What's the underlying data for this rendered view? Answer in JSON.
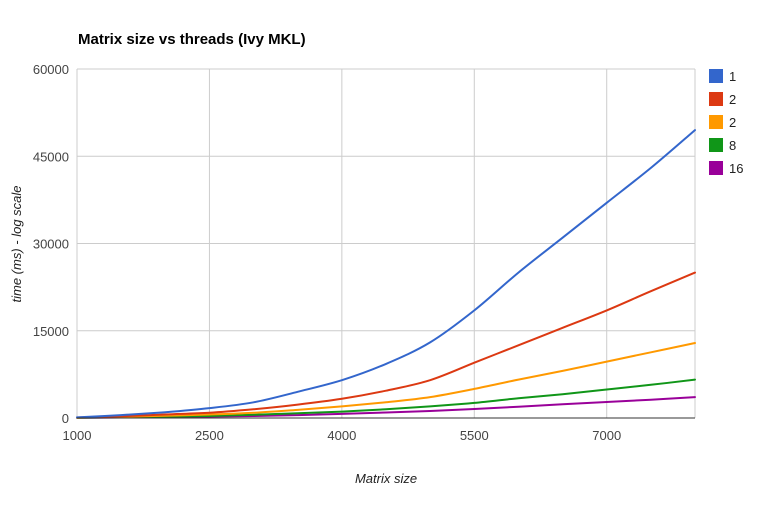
{
  "chart_data": {
    "type": "line",
    "title": "Matrix size vs threads (Ivy MKL)",
    "xlabel": "Matrix size",
    "ylabel": "time (ms) - log scale",
    "xlim": [
      1000,
      8000
    ],
    "ylim": [
      0,
      60000
    ],
    "x_ticks": [
      "1000",
      "2500",
      "4000",
      "5500",
      "7000"
    ],
    "y_ticks": [
      "0",
      "15000",
      "30000",
      "45000",
      "60000"
    ],
    "x_tick_values": [
      1000,
      2500,
      4000,
      5500,
      7000
    ],
    "y_tick_values": [
      0,
      15000,
      30000,
      45000,
      60000
    ],
    "grid": true,
    "legend_position": "right",
    "x": [
      1000,
      1500,
      2000,
      2500,
      3000,
      3500,
      4000,
      4500,
      5000,
      5500,
      6000,
      6500,
      7000,
      7500,
      8000
    ],
    "series": [
      {
        "name": "1",
        "color": "#3366cc",
        "values": [
          100,
          500,
          1000,
          1700,
          2700,
          4500,
          6500,
          9300,
          13000,
          18500,
          25000,
          31000,
          37000,
          43000,
          49500
        ]
      },
      {
        "name": "2",
        "color": "#dc3912",
        "values": [
          80,
          300,
          600,
          900,
          1500,
          2300,
          3300,
          4700,
          6500,
          9500,
          12500,
          15500,
          18500,
          21800,
          25000
        ]
      },
      {
        "name": "2",
        "color": "#ff9900",
        "values": [
          60,
          200,
          400,
          600,
          900,
          1400,
          2000,
          2700,
          3600,
          5000,
          6600,
          8100,
          9700,
          11300,
          12900
        ]
      },
      {
        "name": "8",
        "color": "#109618",
        "values": [
          40,
          120,
          250,
          350,
          550,
          800,
          1100,
          1500,
          2000,
          2600,
          3400,
          4100,
          4900,
          5700,
          6600
        ]
      },
      {
        "name": "16",
        "color": "#990099",
        "values": [
          30,
          80,
          150,
          250,
          350,
          500,
          700,
          950,
          1200,
          1550,
          1950,
          2350,
          2750,
          3150,
          3600
        ]
      }
    ]
  }
}
